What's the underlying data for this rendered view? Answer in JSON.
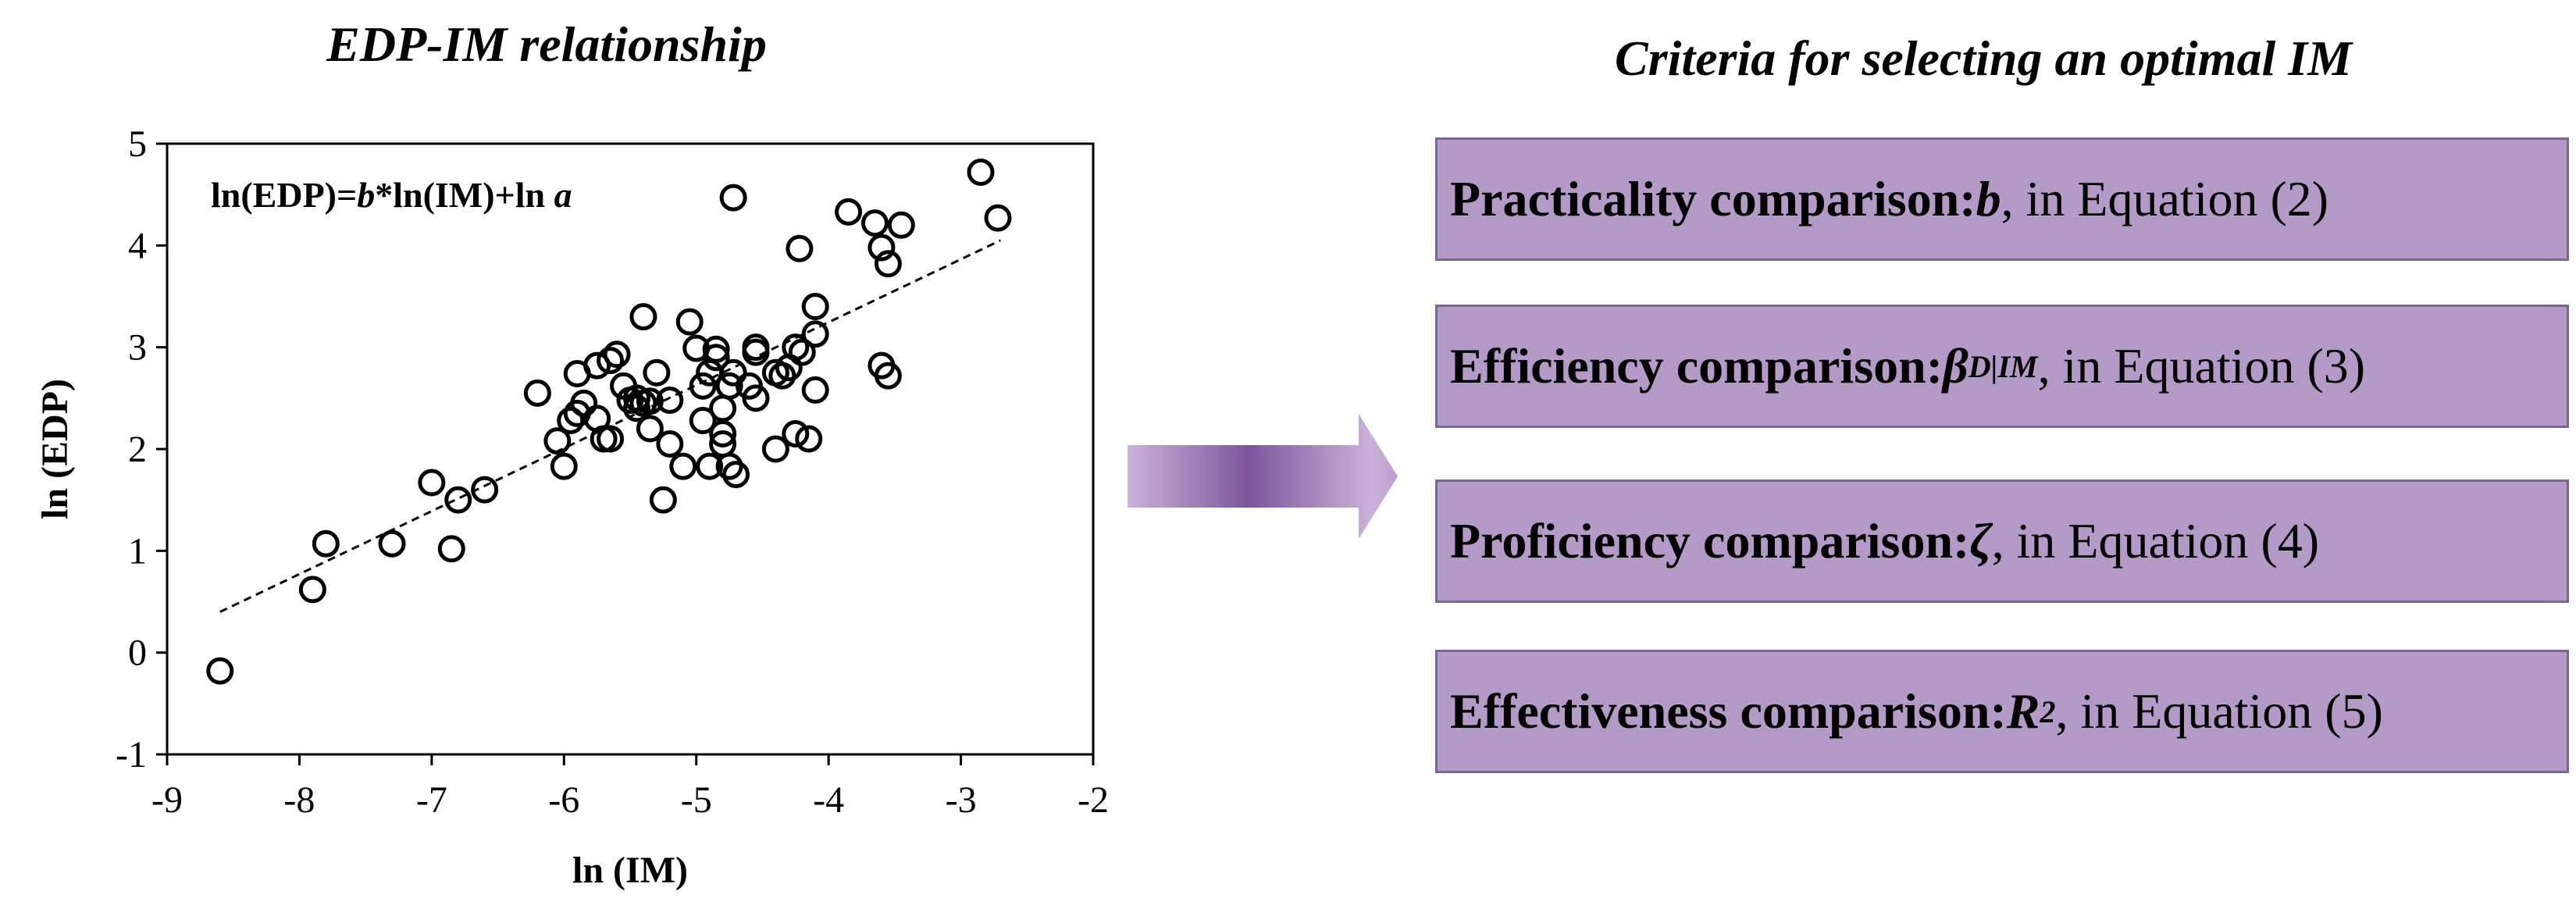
{
  "left_title": "EDP-IM relationship",
  "right_title": "Criteria for selecting an optimal IM",
  "equation": {
    "prefix": "ln(EDP)=",
    "b": "b",
    "mid": "*ln(IM)+ln ",
    "a": "a"
  },
  "criteria": [
    {
      "bold": "Practicality comparison: ",
      "symbol": "b",
      "sub": "",
      "sup": "",
      "rest": " , in Equation (2)"
    },
    {
      "bold": "Efficiency comparison: ",
      "symbol": "β",
      "sub": "D|IM",
      "sup": "",
      "rest": " , in Equation (3)"
    },
    {
      "bold": "Proficiency comparison: ",
      "symbol": "ζ",
      "sub": "",
      "sup": "",
      "rest": " , in Equation (4)"
    },
    {
      "bold": "Effectiveness comparison: ",
      "symbol": "R",
      "sub": "",
      "sup": "2",
      "rest": ", in Equation (5)"
    }
  ],
  "colors": {
    "box_fill": "#b49ac6",
    "box_border": "#7a6690",
    "arrow": "#8a64a6"
  },
  "chart_data": {
    "type": "scatter",
    "xlabel": "ln (IM)",
    "ylabel": "ln (EDP)",
    "xlim": [
      -9,
      -2
    ],
    "ylim": [
      -1,
      5
    ],
    "xticks": [
      -9,
      -8,
      -7,
      -6,
      -5,
      -4,
      -3,
      -2
    ],
    "yticks": [
      -1,
      0,
      1,
      2,
      3,
      4,
      5
    ],
    "grid": false,
    "trendline": {
      "style": "dashed",
      "from": [
        -8.6,
        0.4
      ],
      "to": [
        -2.7,
        4.05
      ]
    },
    "points": [
      [
        -8.6,
        -0.18
      ],
      [
        -7.9,
        0.62
      ],
      [
        -7.8,
        1.07
      ],
      [
        -7.3,
        1.07
      ],
      [
        -7.0,
        1.67
      ],
      [
        -6.85,
        1.02
      ],
      [
        -6.8,
        1.5
      ],
      [
        -6.6,
        1.6
      ],
      [
        -6.2,
        2.55
      ],
      [
        -6.05,
        2.08
      ],
      [
        -6.0,
        1.83
      ],
      [
        -5.95,
        2.28
      ],
      [
        -5.9,
        2.35
      ],
      [
        -5.9,
        2.74
      ],
      [
        -5.85,
        2.45
      ],
      [
        -5.75,
        2.3
      ],
      [
        -5.75,
        2.82
      ],
      [
        -5.7,
        2.1
      ],
      [
        -5.65,
        2.1
      ],
      [
        -5.65,
        2.87
      ],
      [
        -5.6,
        2.93
      ],
      [
        -5.55,
        2.62
      ],
      [
        -5.5,
        2.48
      ],
      [
        -5.45,
        2.4
      ],
      [
        -5.45,
        2.5
      ],
      [
        -5.4,
        2.45
      ],
      [
        -5.35,
        2.47
      ],
      [
        -5.35,
        2.2
      ],
      [
        -5.4,
        3.3
      ],
      [
        -5.3,
        2.75
      ],
      [
        -5.25,
        1.5
      ],
      [
        -5.2,
        2.48
      ],
      [
        -5.2,
        2.05
      ],
      [
        -5.1,
        1.83
      ],
      [
        -5.05,
        3.25
      ],
      [
        -5.0,
        2.99
      ],
      [
        -4.95,
        2.28
      ],
      [
        -4.95,
        2.62
      ],
      [
        -4.9,
        2.75
      ],
      [
        -4.9,
        1.83
      ],
      [
        -4.85,
        2.9
      ],
      [
        -4.85,
        2.98
      ],
      [
        -4.8,
        2.05
      ],
      [
        -4.8,
        2.15
      ],
      [
        -4.8,
        2.4
      ],
      [
        -4.75,
        2.62
      ],
      [
        -4.75,
        1.83
      ],
      [
        -4.72,
        2.75
      ],
      [
        -4.7,
        1.75
      ],
      [
        -4.72,
        4.47
      ],
      [
        -4.6,
        2.62
      ],
      [
        -4.55,
        2.95
      ],
      [
        -4.55,
        2.5
      ],
      [
        -4.55,
        3.0
      ],
      [
        -4.4,
        2.0
      ],
      [
        -4.4,
        2.75
      ],
      [
        -4.35,
        2.72
      ],
      [
        -4.3,
        2.8
      ],
      [
        -4.25,
        3.0
      ],
      [
        -4.25,
        2.15
      ],
      [
        -4.22,
        3.97
      ],
      [
        -4.2,
        2.95
      ],
      [
        -4.15,
        2.1
      ],
      [
        -4.1,
        3.13
      ],
      [
        -4.1,
        3.4
      ],
      [
        -4.1,
        2.58
      ],
      [
        -3.85,
        4.33
      ],
      [
        -3.65,
        4.22
      ],
      [
        -3.6,
        3.98
      ],
      [
        -3.6,
        2.82
      ],
      [
        -3.55,
        2.72
      ],
      [
        -3.55,
        3.82
      ],
      [
        -3.45,
        4.2
      ],
      [
        -2.85,
        4.72
      ],
      [
        -2.72,
        4.27
      ]
    ]
  }
}
